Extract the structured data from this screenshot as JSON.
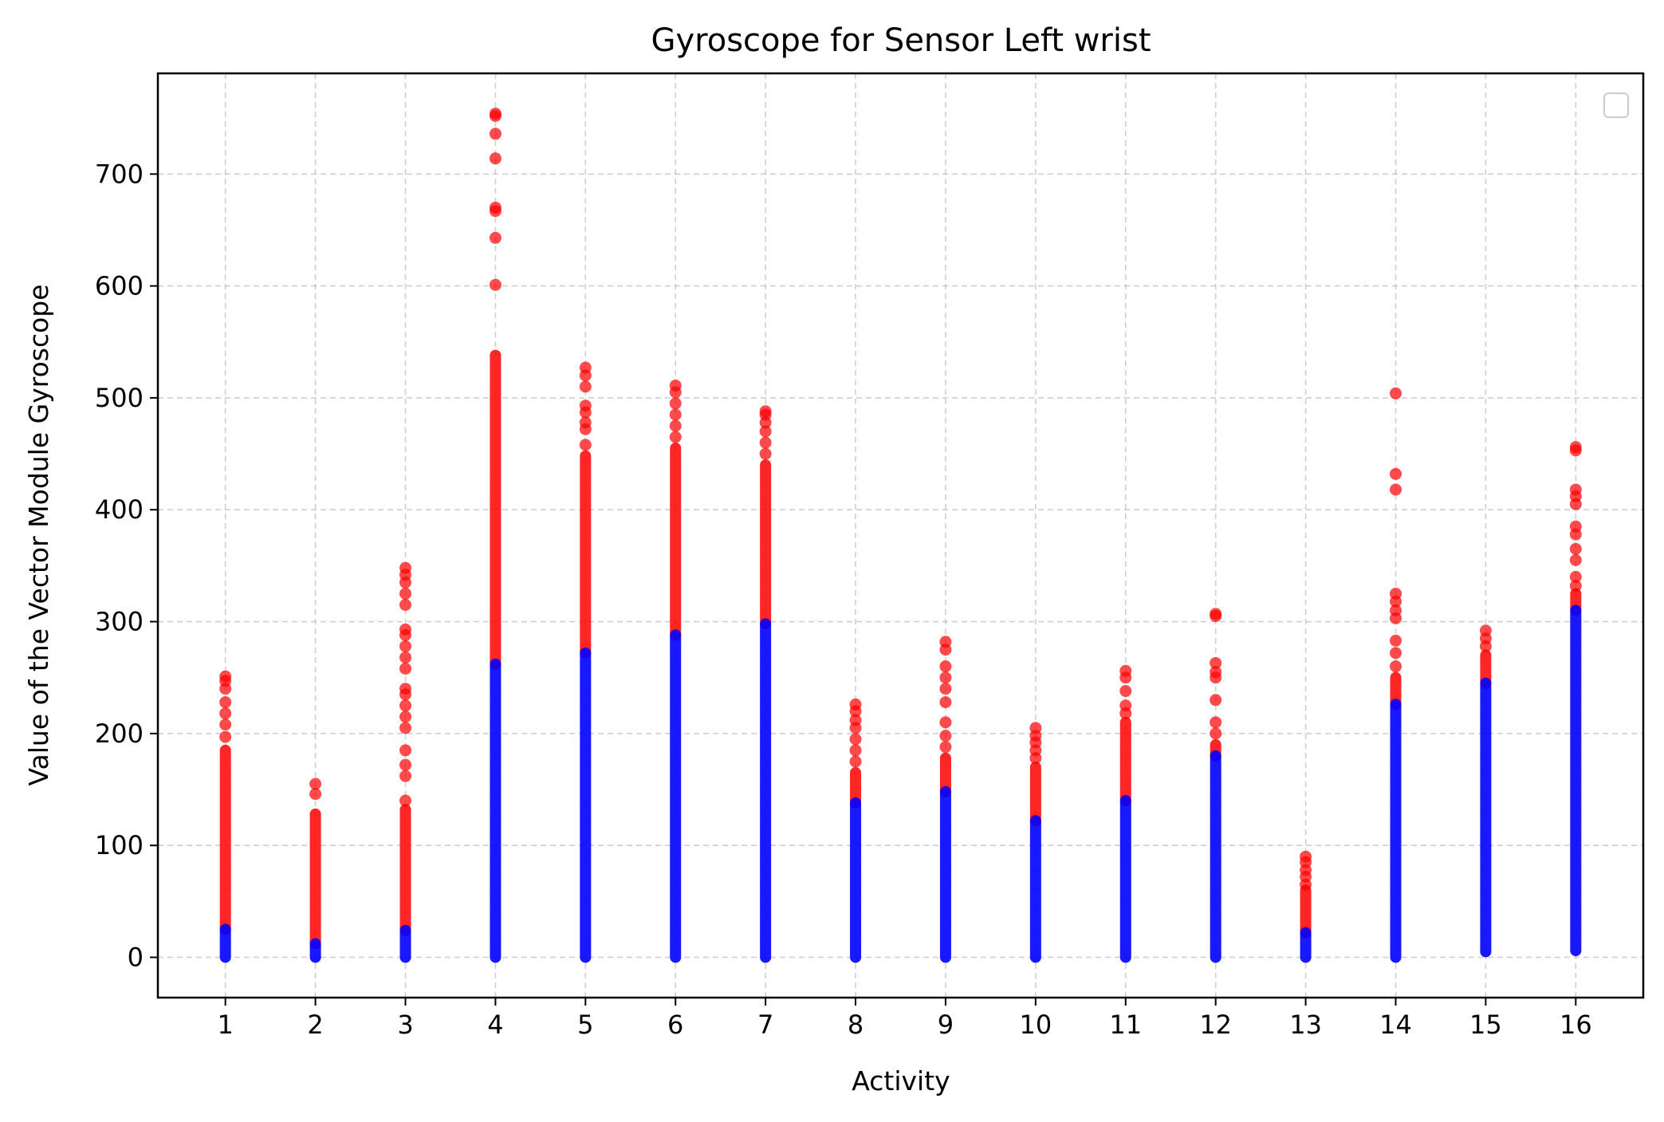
{
  "chart_data": {
    "type": "scatter",
    "title": "Gyroscope for Sensor Left wrist",
    "xlabel": "Activity",
    "ylabel": "Value of the Vector Module Gyroscope",
    "x_ticks": [
      "1",
      "2",
      "3",
      "4",
      "5",
      "6",
      "7",
      "8",
      "9",
      "10",
      "11",
      "12",
      "13",
      "14",
      "15",
      "16"
    ],
    "y_ticks": [
      0,
      100,
      200,
      300,
      400,
      500,
      600,
      700
    ],
    "xlim": [
      0.25,
      16.75
    ],
    "ylim": [
      -36,
      790
    ],
    "grid": true,
    "legend": "top-right (empty)",
    "colors": {
      "inlier": "#0000ff",
      "outlier": "#ff0000"
    },
    "series": [
      {
        "activity": 1,
        "inlier_max": 25,
        "outlier_dense_max": 185,
        "outlier_points": [
          197,
          208,
          218,
          228,
          240,
          247,
          251
        ]
      },
      {
        "activity": 2,
        "inlier_max": 12,
        "outlier_dense_max": 128,
        "outlier_points": [
          146,
          155
        ]
      },
      {
        "activity": 3,
        "inlier_max": 24,
        "outlier_dense_max": 132,
        "outlier_points": [
          140,
          162,
          172,
          185,
          205,
          215,
          225,
          235,
          240,
          258,
          268,
          278,
          288,
          293,
          315,
          325,
          335,
          342,
          348
        ]
      },
      {
        "activity": 4,
        "inlier_max": 262,
        "outlier_dense_max": 538,
        "outlier_points": [
          601,
          643,
          667,
          670,
          714,
          736,
          752,
          754
        ]
      },
      {
        "activity": 5,
        "inlier_max": 272,
        "outlier_dense_max": 448,
        "outlier_points": [
          458,
          472,
          478,
          487,
          493,
          510,
          520,
          527
        ]
      },
      {
        "activity": 6,
        "inlier_max": 288,
        "outlier_dense_max": 455,
        "outlier_points": [
          465,
          475,
          485,
          495,
          505,
          511
        ]
      },
      {
        "activity": 7,
        "inlier_max": 298,
        "outlier_dense_max": 440,
        "outlier_points": [
          450,
          460,
          470,
          478,
          485,
          488
        ]
      },
      {
        "activity": 8,
        "inlier_max": 138,
        "outlier_dense_max": 165,
        "outlier_points": [
          175,
          185,
          195,
          205,
          212,
          220,
          226
        ]
      },
      {
        "activity": 9,
        "inlier_max": 148,
        "outlier_dense_max": 178,
        "outlier_points": [
          188,
          198,
          210,
          228,
          240,
          250,
          260,
          275,
          282
        ]
      },
      {
        "activity": 10,
        "inlier_max": 122,
        "outlier_dense_max": 170,
        "outlier_points": [
          178,
          185,
          192,
          198,
          205
        ]
      },
      {
        "activity": 11,
        "inlier_max": 140,
        "outlier_dense_max": 210,
        "outlier_points": [
          218,
          225,
          238,
          250,
          256
        ]
      },
      {
        "activity": 12,
        "inlier_max": 180,
        "outlier_dense_max": 190,
        "outlier_points": [
          200,
          210,
          230,
          250,
          255,
          263,
          305,
          307
        ]
      },
      {
        "activity": 13,
        "inlier_max": 22,
        "outlier_dense_max": 60,
        "outlier_points": [
          65,
          72,
          78,
          85,
          90
        ]
      },
      {
        "activity": 14,
        "inlier_max": 226,
        "outlier_dense_max": 250,
        "outlier_points": [
          260,
          272,
          283,
          303,
          310,
          318,
          325,
          418,
          432,
          504
        ]
      },
      {
        "activity": 15,
        "inlier_max": 245,
        "inlier_min": 5,
        "outlier_dense_max": 270,
        "outlier_points": [
          278,
          285,
          292
        ]
      },
      {
        "activity": 16,
        "inlier_max": 310,
        "inlier_min": 6,
        "outlier_dense_max": 325,
        "outlier_points": [
          332,
          340,
          355,
          365,
          378,
          385,
          405,
          412,
          418,
          453,
          456
        ]
      }
    ]
  }
}
